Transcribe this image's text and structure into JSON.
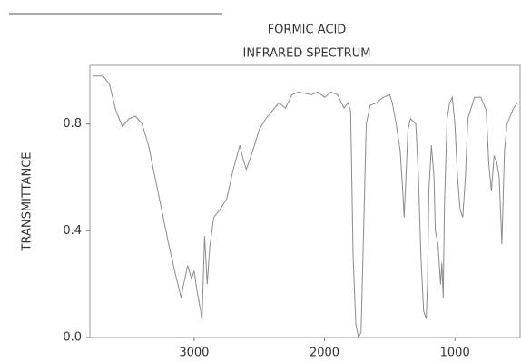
{
  "chart_data": {
    "type": "line",
    "title": [
      "FORMIC ACID",
      "INFRARED SPECTRUM"
    ],
    "y_label": "TRANSMITTANCE",
    "color": "#8a8a8a",
    "xlim": [
      3800,
      500
    ],
    "xticks": [
      3000,
      2000,
      1000
    ],
    "ylim": [
      0,
      1.02
    ],
    "yticks": [
      {
        "value": 0,
        "label": "0.0"
      },
      0.4,
      0.8
    ],
    "x": [
      3780,
      3700,
      3650,
      3600,
      3550,
      3500,
      3450,
      3400,
      3350,
      3300,
      3250,
      3200,
      3150,
      3100,
      3080,
      3050,
      3020,
      3000,
      2980,
      2950,
      2940,
      2920,
      2900,
      2880,
      2850,
      2800,
      2750,
      2700,
      2650,
      2620,
      2600,
      2550,
      2500,
      2450,
      2400,
      2350,
      2300,
      2250,
      2200,
      2100,
      2050,
      2000,
      1950,
      1900,
      1850,
      1820,
      1800,
      1780,
      1760,
      1740,
      1720,
      1700,
      1680,
      1650,
      1600,
      1550,
      1500,
      1480,
      1450,
      1420,
      1400,
      1390,
      1380,
      1360,
      1340,
      1300,
      1280,
      1260,
      1240,
      1220,
      1210,
      1200,
      1180,
      1160,
      1150,
      1130,
      1110,
      1100,
      1090,
      1080,
      1060,
      1040,
      1020,
      1000,
      980,
      960,
      940,
      920,
      900,
      850,
      800,
      760,
      740,
      720,
      700,
      680,
      660,
      640,
      620,
      600,
      550,
      520
    ],
    "values": [
      0.98,
      0.98,
      0.95,
      0.85,
      0.79,
      0.82,
      0.83,
      0.8,
      0.72,
      0.6,
      0.48,
      0.36,
      0.25,
      0.15,
      0.2,
      0.27,
      0.22,
      0.25,
      0.18,
      0.1,
      0.06,
      0.38,
      0.2,
      0.34,
      0.45,
      0.48,
      0.52,
      0.63,
      0.72,
      0.66,
      0.63,
      0.7,
      0.78,
      0.82,
      0.85,
      0.88,
      0.86,
      0.91,
      0.92,
      0.91,
      0.92,
      0.9,
      0.92,
      0.91,
      0.86,
      0.88,
      0.85,
      0.3,
      0.05,
      0.0,
      0.02,
      0.4,
      0.8,
      0.87,
      0.88,
      0.9,
      0.91,
      0.88,
      0.8,
      0.7,
      0.55,
      0.45,
      0.55,
      0.78,
      0.82,
      0.8,
      0.6,
      0.3,
      0.1,
      0.07,
      0.2,
      0.55,
      0.72,
      0.6,
      0.4,
      0.35,
      0.2,
      0.28,
      0.15,
      0.5,
      0.82,
      0.88,
      0.9,
      0.8,
      0.6,
      0.48,
      0.45,
      0.6,
      0.82,
      0.9,
      0.9,
      0.85,
      0.65,
      0.55,
      0.68,
      0.66,
      0.6,
      0.35,
      0.7,
      0.8,
      0.86,
      0.88
    ]
  }
}
